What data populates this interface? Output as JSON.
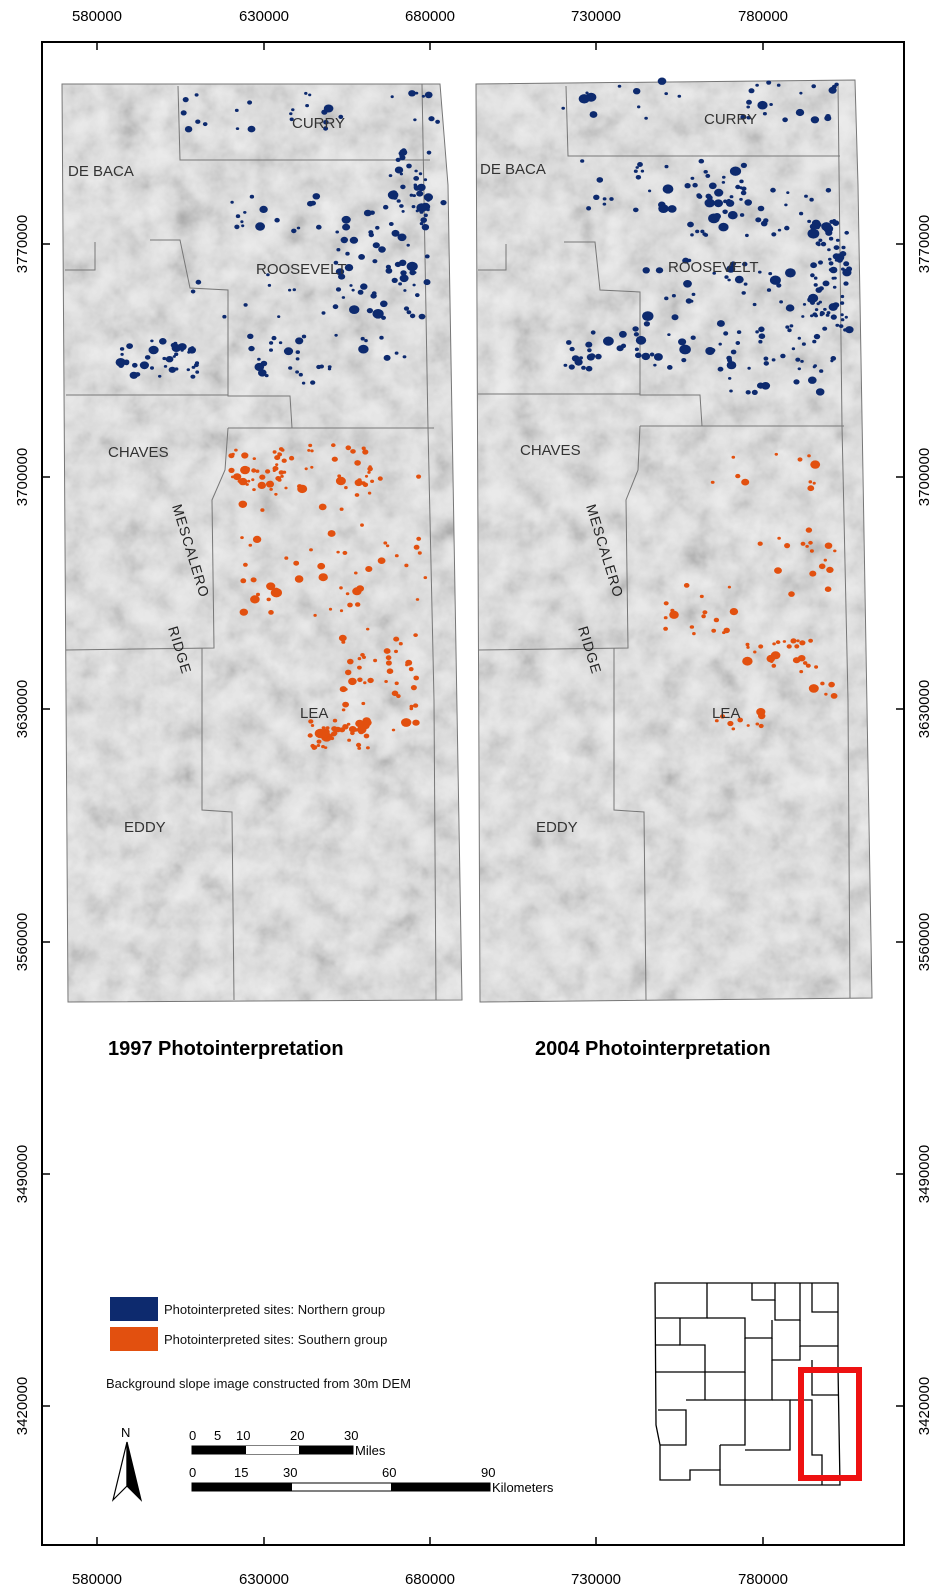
{
  "x_ticks": [
    "580000",
    "630000",
    "680000",
    "730000",
    "780000"
  ],
  "y_ticks": [
    "3770000",
    "3700000",
    "3630000",
    "3560000",
    "3490000",
    "3420000"
  ],
  "panels": [
    {
      "title": "1997 Photointerpretation",
      "counties": {
        "curry": "CURRY",
        "debaca": "DE BACA",
        "roosevelt": "ROOSEVELT",
        "chaves": "CHAVES",
        "lea": "LEA",
        "eddy": "EDDY"
      },
      "ridge": [
        "MESCALERO",
        "RIDGE"
      ]
    },
    {
      "title": "2004 Photointerpretation",
      "counties": {
        "curry": "CURRY",
        "debaca": "DE BACA",
        "roosevelt": "ROOSEVELT",
        "chaves": "CHAVES",
        "lea": "LEA",
        "eddy": "EDDY"
      },
      "ridge": [
        "MESCALERO",
        "RIDGE"
      ]
    }
  ],
  "legend": {
    "northern": {
      "label": "Photointerpreted sites: Northern group",
      "color": "#0d2a6e"
    },
    "southern": {
      "label": "Photointerpreted sites: Southern group",
      "color": "#e2500f"
    },
    "note": "Background slope image constructed from 30m DEM"
  },
  "north_arrow": "N",
  "scale_bar": {
    "miles_ticks": [
      "0",
      "5",
      "10",
      "20",
      "30"
    ],
    "miles_unit": "Miles",
    "km_ticks": [
      "0",
      "15",
      "30",
      "60",
      "90"
    ],
    "km_unit": "Kilometers"
  },
  "colors": {
    "north": "#0d2a6e",
    "south": "#e2500f",
    "inset_box": "#ee1111",
    "terrain": "#cfcfcf"
  }
}
